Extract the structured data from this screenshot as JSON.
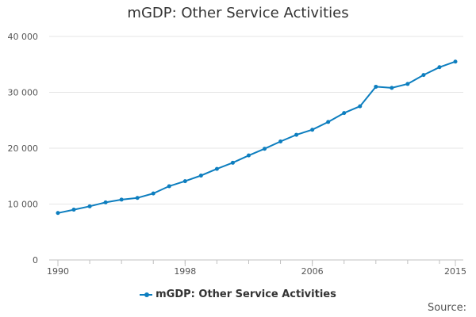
{
  "chart_data": {
    "type": "line",
    "title": "mGDP: Other Service Activities",
    "xlabel": "",
    "ylabel": "",
    "xlim": [
      1990,
      2015
    ],
    "ylim": [
      0,
      40000
    ],
    "x_ticks": [
      1990,
      1998,
      2006,
      2015
    ],
    "x_tick_labels": [
      "1990",
      "1998",
      "2006",
      "2015"
    ],
    "y_ticks": [
      0,
      10000,
      20000,
      30000,
      40000
    ],
    "y_tick_labels": [
      "0",
      "10 000",
      "20 000",
      "30 000",
      "40 000"
    ],
    "grid": "horizontal",
    "legend_position": "bottom-center",
    "series": [
      {
        "name": "mGDP: Other Service Activities",
        "color": "#0d7ebf",
        "x": [
          1990,
          1991,
          1992,
          1993,
          1994,
          1995,
          1996,
          1997,
          1998,
          1999,
          2000,
          2001,
          2002,
          2003,
          2004,
          2005,
          2006,
          2007,
          2008,
          2009,
          2010,
          2011,
          2012,
          2013,
          2014,
          2015
        ],
        "values": [
          8400,
          9000,
          9600,
          10300,
          10800,
          11100,
          11900,
          13200,
          14100,
          15100,
          16300,
          17400,
          18700,
          19900,
          21200,
          22400,
          23300,
          24700,
          26300,
          27500,
          31000,
          30800,
          31500,
          33100,
          34500,
          35500
        ]
      }
    ],
    "source_label": "Source:"
  }
}
